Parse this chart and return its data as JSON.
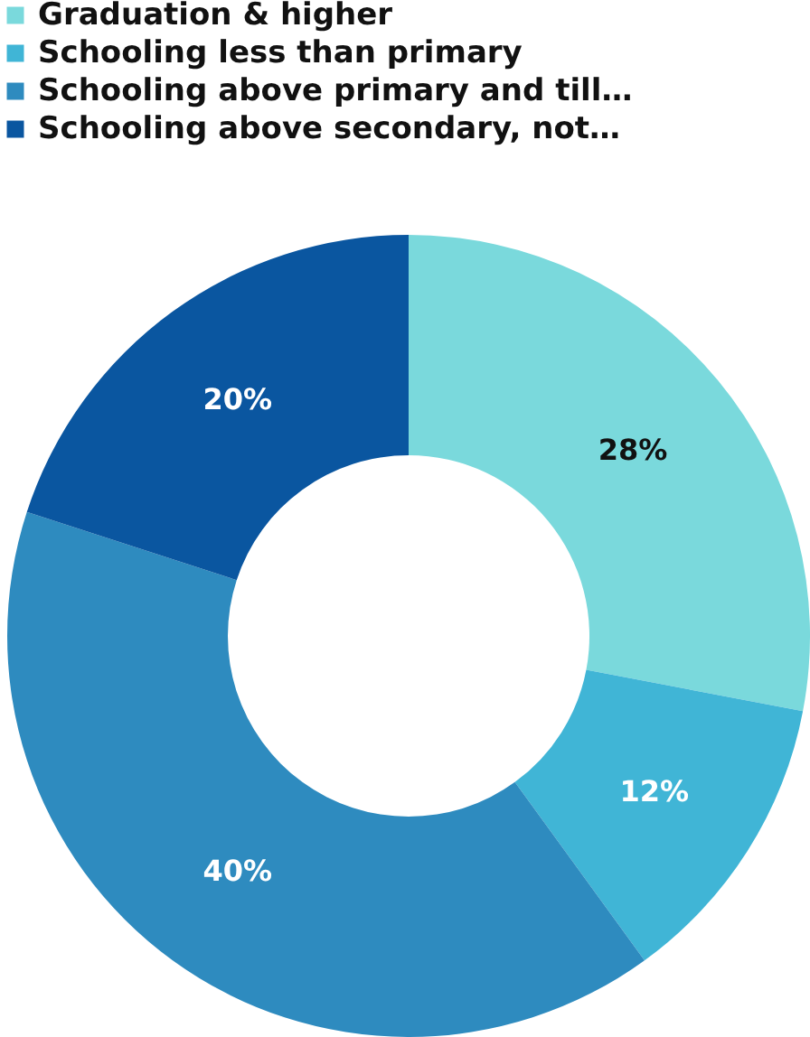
{
  "chart_data": {
    "type": "donut",
    "categories": [
      "Graduation & higher",
      "Schooling less than primary",
      "Schooling above primary and till…",
      "Schooling above secondary, not…"
    ],
    "values": [
      28,
      12,
      40,
      20
    ],
    "colors": [
      "#7ad9dc",
      "#40b5d6",
      "#2e8bbf",
      "#0a56a0"
    ],
    "value_labels": [
      "28%",
      "12%",
      "40%",
      "20%"
    ],
    "legend": "top left"
  }
}
